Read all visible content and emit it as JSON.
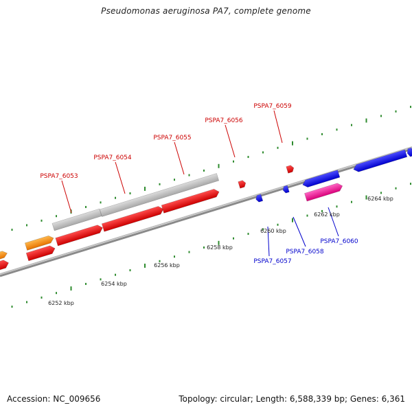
{
  "title": "Pseudomonas aeruginosa PA7, complete genome",
  "footer": {
    "accession": "Accession: NC_009656",
    "summary": "Topology: circular; Length: 6,588,339 bp; Genes: 6,361"
  },
  "colors": {
    "forward_label": "#cc0000",
    "reverse_label": "#0000cc",
    "red_gene": "#ff1a1a",
    "orange_gene": "#ff9900",
    "gray_gene": "#c4c4c4",
    "blue_gene": "#1a1aff",
    "magenta_gene": "#ff33aa",
    "backbone": "#8a8a8a",
    "tick": "#2e8b2e"
  },
  "forward_labels": [
    {
      "text": "PSPA7_6053"
    },
    {
      "text": "PSPA7_6054"
    },
    {
      "text": "PSPA7_6055"
    },
    {
      "text": "PSPA7_6056"
    },
    {
      "text": "PSPA7_6059"
    }
  ],
  "reverse_labels": [
    {
      "text": "PSPA7_6057"
    },
    {
      "text": "PSPA7_6058"
    },
    {
      "text": "PSPA7_6060"
    }
  ],
  "scale_labels": [
    "6252 kbp",
    "6254 kbp",
    "6256 kbp",
    "6258 kbp",
    "6260 kbp",
    "6262 kbp",
    "6264 kbp"
  ]
}
